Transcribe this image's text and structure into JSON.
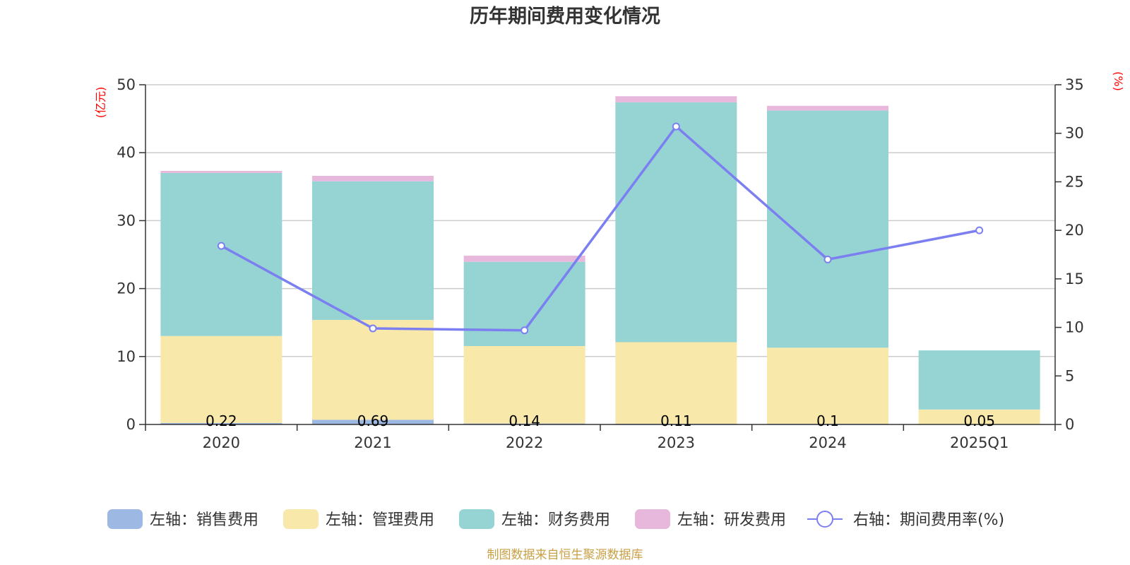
{
  "chart_data": {
    "type": "bar",
    "title": "历年期间费用变化情况",
    "left_unit": "(亿元)",
    "right_unit": "(%)",
    "categories": [
      "2020",
      "2021",
      "2022",
      "2023",
      "2024",
      "2025Q1"
    ],
    "left_ylim": [
      0,
      50
    ],
    "left_ticks": [
      "0",
      "10",
      "20",
      "30",
      "40",
      "50"
    ],
    "right_ylim": [
      0,
      35
    ],
    "right_ticks": [
      "0",
      "5",
      "10",
      "15",
      "20",
      "25",
      "30",
      "35"
    ],
    "series": [
      {
        "name": "左轴：销售费用",
        "color": "#9db8e3",
        "values": [
          0.22,
          0.69,
          0.14,
          0.11,
          0.1,
          0.05
        ],
        "labels": [
          "0.22",
          "0.69",
          "0.14",
          "0.11",
          "0.1",
          "0.05"
        ]
      },
      {
        "name": "左轴：管理费用",
        "color": "#f8e8a9",
        "values": [
          12.8,
          14.7,
          11.4,
          12.0,
          11.2,
          2.15
        ]
      },
      {
        "name": "左轴：财务费用",
        "color": "#96d4d4",
        "values": [
          24.0,
          20.4,
          12.4,
          35.3,
          34.9,
          8.7
        ]
      },
      {
        "name": "左轴：研发费用",
        "color": "#e8b8dc",
        "values": [
          0.3,
          0.8,
          0.9,
          0.9,
          0.7,
          0.0
        ]
      }
    ],
    "line": {
      "name": "右轴：期间费用率(%)",
      "color": "#7b7ff0",
      "values": [
        18.4,
        9.9,
        9.7,
        30.7,
        17.0,
        20.0
      ]
    },
    "source": "制图数据来自恒生聚源数据库"
  }
}
